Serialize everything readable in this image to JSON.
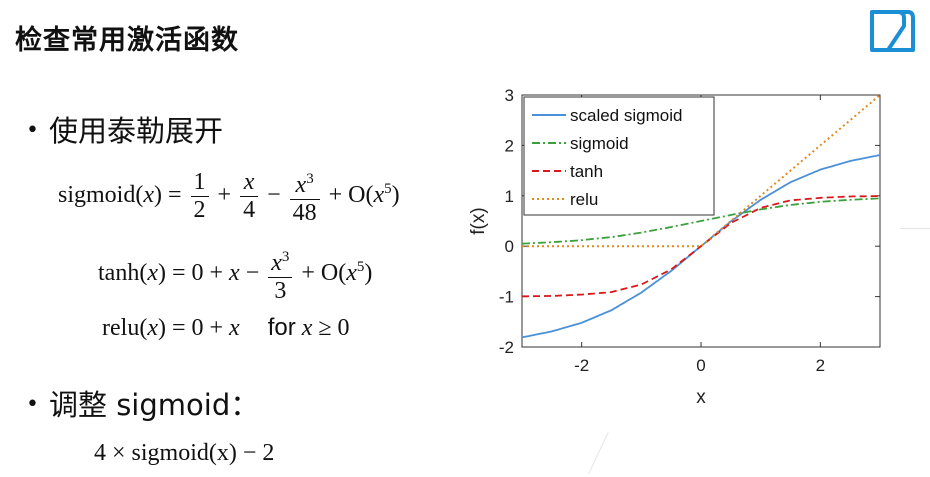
{
  "title": "检查常用激活函数",
  "bullets": {
    "taylor": "使用泰勒展开",
    "adjust": "调整 sigmoid："
  },
  "formulas": {
    "sigmoid": {
      "lhs": "sigmoid(",
      "var": "x",
      "eq": ") = ",
      "f1_num": "1",
      "f1_den": "2",
      "plus1": "+",
      "f2_num": "x",
      "f2_den": "4",
      "minus1": "−",
      "f3_num_base": "x",
      "f3_num_exp": "3",
      "f3_den": "48",
      "rest": "+ O(",
      "rest_var": "x",
      "rest_exp": "5",
      "close": ")"
    },
    "tanh": {
      "lhs": "tanh(",
      "var": "x",
      "eq": ") = 0 + ",
      "var2": "x",
      "minus": " −",
      "f_num_base": "x",
      "f_num_exp": "3",
      "f_den": "3",
      "rest": "+ O(",
      "rest_var": "x",
      "rest_exp": "5",
      "close": ")"
    },
    "relu": {
      "lhs": "relu(",
      "var": "x",
      "eq": ") = 0 + ",
      "var2": "x",
      "for": "for",
      "cond_var": "x",
      "cond": " ≥ 0"
    },
    "scaled": "4 × sigmoid(x) − 2"
  },
  "chart_data": {
    "type": "line",
    "xlabel": "x",
    "ylabel": "f(x)",
    "xlim": [
      -3,
      3
    ],
    "ylim": [
      -2,
      3
    ],
    "xticks": [
      "-2",
      "0",
      "2"
    ],
    "yticks": [
      "-2",
      "-1",
      "0",
      "1",
      "2",
      "3"
    ],
    "legend_position": "top-left",
    "series": [
      {
        "name": "scaled sigmoid",
        "color": "#4a90d9",
        "style": "solid",
        "x": [
          -3,
          -2.5,
          -2,
          -1.5,
          -1,
          -0.5,
          0,
          0.5,
          1,
          1.5,
          2,
          2.5,
          3
        ],
        "y": [
          -1.81,
          -1.69,
          -1.52,
          -1.27,
          -0.92,
          -0.49,
          0,
          0.49,
          0.92,
          1.27,
          1.52,
          1.69,
          1.81
        ]
      },
      {
        "name": "sigmoid",
        "color": "#3aa13a",
        "style": "dashdot",
        "x": [
          -3,
          -2.5,
          -2,
          -1.5,
          -1,
          -0.5,
          0,
          0.5,
          1,
          1.5,
          2,
          2.5,
          3
        ],
        "y": [
          0.05,
          0.08,
          0.12,
          0.18,
          0.27,
          0.38,
          0.5,
          0.62,
          0.73,
          0.82,
          0.88,
          0.92,
          0.95
        ]
      },
      {
        "name": "tanh",
        "color": "#d7191c",
        "style": "dashed",
        "x": [
          -3,
          -2.5,
          -2,
          -1.5,
          -1,
          -0.5,
          0,
          0.5,
          1,
          1.5,
          2,
          2.5,
          3
        ],
        "y": [
          -0.995,
          -0.987,
          -0.96,
          -0.91,
          -0.76,
          -0.46,
          0,
          0.46,
          0.76,
          0.91,
          0.96,
          0.987,
          0.995
        ]
      },
      {
        "name": "relu",
        "color": "#e08a1e",
        "style": "dotted",
        "x": [
          -3,
          0,
          3
        ],
        "y": [
          0,
          0,
          3
        ]
      }
    ]
  },
  "logo_icon": "brand-logo-icon"
}
